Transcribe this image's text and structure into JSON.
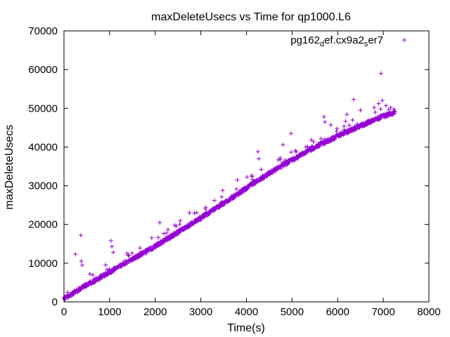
{
  "chart_data": {
    "type": "scatter",
    "title": "maxDeleteUsecs vs Time for qp1000.L6",
    "xlabel": "Time(s)",
    "ylabel": "maxDeleteUsecs",
    "xlim": [
      0,
      8000
    ],
    "ylim": [
      0,
      70000
    ],
    "xticks": [
      0,
      1000,
      2000,
      3000,
      4000,
      5000,
      6000,
      7000,
      8000
    ],
    "yticks": [
      0,
      10000,
      20000,
      30000,
      40000,
      50000,
      60000,
      70000
    ],
    "grid": false,
    "legend_position": "top-right",
    "series": [
      {
        "name": "pg162_def.cx9a2_ser7",
        "legend_parts": [
          {
            "text": "pg162",
            "sub": false
          },
          {
            "text": "d",
            "sub": true
          },
          {
            "text": "ef.cx9a2",
            "sub": false
          },
          {
            "text": "s",
            "sub": true
          },
          {
            "text": "er7",
            "sub": false
          }
        ],
        "color": "#9400d3",
        "marker": "plus",
        "trend_points": [
          [
            0,
            600
          ],
          [
            500,
            4200
          ],
          [
            1000,
            7500
          ],
          [
            1500,
            10800
          ],
          [
            2000,
            14200
          ],
          [
            2500,
            17800
          ],
          [
            3000,
            21500
          ],
          [
            3500,
            25300
          ],
          [
            4000,
            29200
          ],
          [
            4500,
            33000
          ],
          [
            5000,
            36500
          ],
          [
            5500,
            39800
          ],
          [
            6000,
            42600
          ],
          [
            6500,
            45300
          ],
          [
            7000,
            47800
          ],
          [
            7250,
            48800
          ]
        ],
        "outliers": [
          [
            80,
            2500
          ],
          [
            250,
            12300
          ],
          [
            370,
            17200
          ],
          [
            380,
            10500
          ],
          [
            400,
            9500
          ],
          [
            1030,
            15800
          ],
          [
            1050,
            14300
          ],
          [
            1080,
            12800
          ],
          [
            2100,
            20500
          ],
          [
            2550,
            21000
          ],
          [
            2750,
            23000
          ],
          [
            3100,
            24000
          ],
          [
            3300,
            26200
          ],
          [
            3480,
            28800
          ],
          [
            3800,
            31500
          ],
          [
            4250,
            38800
          ],
          [
            4270,
            37000
          ],
          [
            4800,
            40600
          ],
          [
            4980,
            43500
          ],
          [
            5700,
            47800
          ],
          [
            5720,
            46500
          ],
          [
            5850,
            45700
          ],
          [
            6200,
            48400
          ],
          [
            6350,
            52300
          ],
          [
            6500,
            49500
          ],
          [
            6560,
            46200
          ],
          [
            6800,
            50200
          ],
          [
            6900,
            51200
          ],
          [
            6950,
            59000
          ],
          [
            6980,
            52000
          ],
          [
            7060,
            50700
          ],
          [
            7120,
            49700
          ]
        ]
      }
    ]
  }
}
